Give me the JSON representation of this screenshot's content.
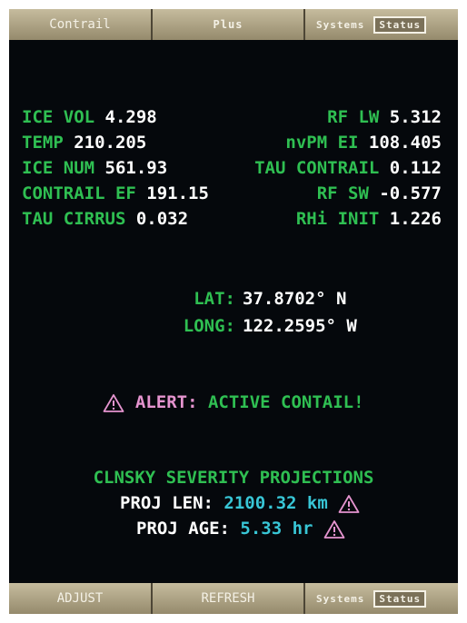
{
  "top_bar": {
    "tab1": "Contrail",
    "tab2": "Plus",
    "systems": "Systems",
    "status": "Status"
  },
  "metrics": [
    {
      "left_label": "ICE VOL",
      "left_value": "4.298",
      "right_label": "RF LW",
      "right_value": "5.312"
    },
    {
      "left_label": "TEMP",
      "left_value": "210.205",
      "right_label": "nvPM EI",
      "right_value": "108.405"
    },
    {
      "left_label": "ICE NUM",
      "left_value": "561.93",
      "right_label": "TAU CONTRAIL",
      "right_value": "0.112"
    },
    {
      "left_label": "CONTRAIL EF",
      "left_value": "191.15",
      "right_label": "RF SW",
      "right_value": "-0.577"
    },
    {
      "left_label": "TAU CIRRUS",
      "left_value": "0.032",
      "right_label": "RHi INIT",
      "right_value": "1.226"
    }
  ],
  "coords": {
    "lat_label": "LAT:",
    "lat_value": "37.8702° N",
    "long_label": "LONG:",
    "long_value": "122.2595° W"
  },
  "alert": {
    "label": "ALERT:",
    "message": "ACTIVE CONTAIL!"
  },
  "projections": {
    "title": "CLNSKY SEVERITY PROJECTIONS",
    "len_label": "PROJ LEN:",
    "len_value": "2100.32 km",
    "age_label": "PROJ AGE:",
    "age_value": "5.33 hr"
  },
  "bottom_bar": {
    "adjust": "ADJUST",
    "refresh": "REFRESH",
    "systems": "Systems",
    "status": "Status"
  },
  "colors": {
    "label_green": "#2fbf52",
    "value_white": "#ffffff",
    "projection_cyan": "#38c6d6",
    "alert_pink": "#e594cf",
    "background": "#05080c",
    "bar_tan": "#b9ae8e"
  },
  "icons": [
    "warning-triangle-icon"
  ]
}
